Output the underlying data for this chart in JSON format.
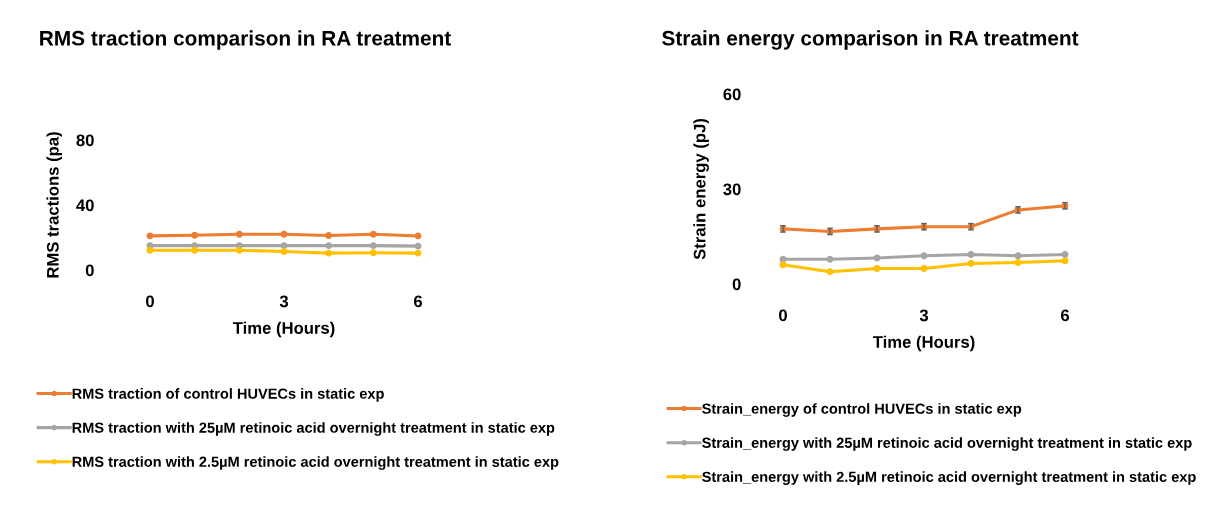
{
  "chart_data": [
    {
      "type": "line",
      "title": "RMS traction comparison in RA treatment",
      "xlabel": "Time (Hours)",
      "ylabel": "RMS tractions (pa)",
      "x": [
        0,
        1,
        2,
        3,
        4,
        5,
        6
      ],
      "xlim": [
        0,
        6
      ],
      "xticks": [
        0,
        3,
        6
      ],
      "ylim": [
        0,
        80
      ],
      "yticks": [
        0,
        40,
        80
      ],
      "grid": false,
      "legend": "bottom",
      "marker": "circle",
      "series": [
        {
          "name": "RMS traction of control HUVECs in static exp",
          "color": "#ed7d31",
          "values": [
            21,
            21.4,
            22,
            22,
            21.2,
            22,
            21
          ]
        },
        {
          "name": "RMS traction with 25µM retinoic acid overnight treatment in static exp",
          "color": "#a5a5a5",
          "values": [
            15,
            15,
            15,
            15,
            15,
            15,
            14.7
          ]
        },
        {
          "name": "RMS traction with 2.5µM retinoic acid overnight treatment in static exp",
          "color": "#ffc000",
          "values": [
            12.2,
            12.2,
            12.2,
            11.4,
            10.4,
            10.6,
            10.4
          ]
        }
      ]
    },
    {
      "type": "line",
      "title": "Strain energy comparison in RA treatment",
      "xlabel": "Time (Hours)",
      "ylabel": "Strain energy (pJ)",
      "x": [
        0,
        1,
        2,
        3,
        4,
        5,
        6
      ],
      "xlim": [
        0,
        6
      ],
      "xticks": [
        0,
        3,
        6
      ],
      "ylim": [
        0,
        60
      ],
      "yticks": [
        0,
        30,
        60
      ],
      "grid": false,
      "legend": "bottom",
      "marker": "circle",
      "series": [
        {
          "name": "Strain_energy of control HUVECs in static exp",
          "color": "#ed7d31",
          "values": [
            17.4,
            16.6,
            17.4,
            18.1,
            18.1,
            23.4,
            24.7
          ],
          "errors": [
            1,
            1,
            1,
            1,
            1,
            1,
            1
          ]
        },
        {
          "name": "Strain_energy with 25µM retinoic acid overnight treatment in static exp",
          "color": "#a5a5a5",
          "values": [
            7.8,
            7.8,
            8.2,
            8.9,
            9.3,
            8.9,
            9.3
          ]
        },
        {
          "name": "Strain_energy with 2.5µM retinoic acid overnight treatment in static exp",
          "color": "#ffc000",
          "values": [
            6.1,
            3.9,
            4.9,
            4.9,
            6.5,
            6.8,
            7.3
          ]
        }
      ]
    }
  ]
}
